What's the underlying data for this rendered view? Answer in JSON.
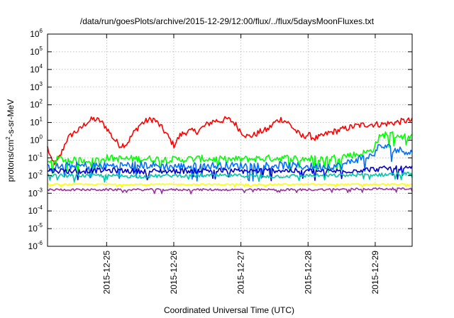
{
  "chart_data": {
    "type": "line",
    "title": "/data/run/goesPlots/archive/2015-12-29/12:00/flux/../flux/5daysMoonFluxes.txt",
    "xlabel": "Coordinated Universal Time (UTC)",
    "ylabel": {
      "parts": [
        "protons/cm",
        "2",
        "-s-sr-MeV"
      ]
    },
    "x_unit": "days since 2015-12-24 00:00 UTC",
    "xlim": [
      0.12,
      5.55
    ],
    "ylim_exponent": [
      -6,
      6
    ],
    "y_scale": "log",
    "grid": true,
    "x_ticks": [
      {
        "x": 1,
        "label": "2015-12-25"
      },
      {
        "x": 2,
        "label": "2015-12-26"
      },
      {
        "x": 3,
        "label": "2015-12-27"
      },
      {
        "x": 4,
        "label": "2015-12-28"
      },
      {
        "x": 5,
        "label": "2015-12-29"
      }
    ],
    "y_ticks": [
      {
        "exp": -6,
        "base": "10",
        "sup": "-6"
      },
      {
        "exp": -5,
        "base": "10",
        "sup": "-5"
      },
      {
        "exp": -4,
        "base": "10",
        "sup": "-4"
      },
      {
        "exp": -3,
        "base": "10",
        "sup": "-3"
      },
      {
        "exp": -2,
        "base": "10",
        "sup": "-2"
      },
      {
        "exp": -1,
        "base": "10",
        "sup": "-1"
      },
      {
        "exp": 0,
        "base": "10",
        "sup": "0"
      },
      {
        "exp": 1,
        "base": "10",
        "sup": "1"
      },
      {
        "exp": 2,
        "base": "10",
        "sup": "2"
      },
      {
        "exp": 3,
        "base": "10",
        "sup": "3"
      },
      {
        "exp": 4,
        "base": "10",
        "sup": "4"
      },
      {
        "exp": 5,
        "base": "10",
        "sup": "5"
      },
      {
        "exp": 6,
        "base": "10",
        "sup": "6"
      }
    ],
    "series": [
      {
        "color": "#ff0000",
        "noise": 0.18,
        "points": [
          [
            0.12,
            -0.4
          ],
          [
            0.18,
            -1.2
          ],
          [
            0.25,
            -1.3
          ],
          [
            0.32,
            -0.8
          ],
          [
            0.4,
            0
          ],
          [
            0.5,
            0.4
          ],
          [
            0.6,
            0.6
          ],
          [
            0.7,
            1.0
          ],
          [
            0.8,
            1.2
          ],
          [
            0.9,
            1.1
          ],
          [
            1.0,
            0.7
          ],
          [
            1.1,
            0.1
          ],
          [
            1.2,
            -0.3
          ],
          [
            1.3,
            -0.2
          ],
          [
            1.4,
            0.4
          ],
          [
            1.5,
            0.9
          ],
          [
            1.6,
            1.1
          ],
          [
            1.7,
            1.2
          ],
          [
            1.8,
            0.8
          ],
          [
            1.9,
            0.3
          ],
          [
            2.0,
            -0.3
          ],
          [
            2.1,
            0.3
          ],
          [
            2.2,
            0.5
          ],
          [
            2.35,
            0.5
          ],
          [
            2.5,
            0.9
          ],
          [
            2.6,
            1.1
          ],
          [
            2.7,
            1.1
          ],
          [
            2.8,
            1.2
          ],
          [
            2.9,
            1.0
          ],
          [
            3.0,
            0.5
          ],
          [
            3.1,
            0.2
          ],
          [
            3.2,
            0.3
          ],
          [
            3.3,
            0.5
          ],
          [
            3.4,
            0.6
          ],
          [
            3.5,
            1.0
          ],
          [
            3.6,
            1.2
          ],
          [
            3.7,
            1.0
          ],
          [
            3.8,
            0.6
          ],
          [
            3.9,
            0.2
          ],
          [
            4.0,
            0.3
          ],
          [
            4.1,
            0.1
          ],
          [
            4.2,
            0.2
          ],
          [
            4.3,
            0.4
          ],
          [
            4.5,
            0.6
          ],
          [
            4.7,
            0.8
          ],
          [
            4.9,
            0.9
          ],
          [
            5.1,
            0.9
          ],
          [
            5.3,
            1.0
          ],
          [
            5.45,
            1.1
          ],
          [
            5.55,
            1.1
          ]
        ]
      },
      {
        "color": "#00ff00",
        "noise": 0.2,
        "points": [
          [
            0.12,
            -1.3
          ],
          [
            0.3,
            -1.05
          ],
          [
            0.5,
            -1.15
          ],
          [
            0.8,
            -1.1
          ],
          [
            1.0,
            -1.0
          ],
          [
            1.2,
            -1.05
          ],
          [
            1.6,
            -1.05
          ],
          [
            2.0,
            -1.1
          ],
          [
            2.4,
            -1.05
          ],
          [
            2.8,
            -1.1
          ],
          [
            3.2,
            -1.05
          ],
          [
            3.6,
            -1.0
          ],
          [
            4.0,
            -1.05
          ],
          [
            4.3,
            -1.05
          ],
          [
            4.6,
            -0.85
          ],
          [
            4.75,
            -0.8
          ],
          [
            4.95,
            -0.6
          ],
          [
            5.05,
            0.1
          ],
          [
            5.15,
            0.35
          ],
          [
            5.3,
            0.3
          ],
          [
            5.45,
            0.2
          ],
          [
            5.55,
            0.15
          ]
        ]
      },
      {
        "color": "#0070ff",
        "noise": 0.22,
        "points": [
          [
            0.12,
            -1.55
          ],
          [
            0.5,
            -1.45
          ],
          [
            1.0,
            -1.45
          ],
          [
            1.5,
            -1.4
          ],
          [
            2.0,
            -1.5
          ],
          [
            2.5,
            -1.45
          ],
          [
            3.0,
            -1.45
          ],
          [
            3.5,
            -1.4
          ],
          [
            4.0,
            -1.5
          ],
          [
            4.5,
            -1.45
          ],
          [
            4.7,
            -1.1
          ],
          [
            4.95,
            -0.9
          ],
          [
            5.05,
            -0.4
          ],
          [
            5.15,
            -0.35
          ],
          [
            5.3,
            -0.55
          ],
          [
            5.45,
            -0.6
          ],
          [
            5.55,
            -0.7
          ]
        ]
      },
      {
        "color": "#0000cc",
        "noise": 0.15,
        "points": [
          [
            0.12,
            -1.7
          ],
          [
            0.5,
            -1.75
          ],
          [
            1.0,
            -1.7
          ],
          [
            1.5,
            -1.75
          ],
          [
            2.0,
            -1.75
          ],
          [
            2.5,
            -1.7
          ],
          [
            3.0,
            -1.75
          ],
          [
            3.5,
            -1.7
          ],
          [
            4.0,
            -1.75
          ],
          [
            4.5,
            -1.75
          ],
          [
            4.7,
            -1.7
          ],
          [
            4.95,
            -1.65
          ],
          [
            5.2,
            -1.6
          ],
          [
            5.4,
            -1.6
          ],
          [
            5.55,
            -1.6
          ]
        ]
      },
      {
        "color": "#00c8a8",
        "noise": 0.1,
        "points": [
          [
            0.12,
            -2.0
          ],
          [
            0.5,
            -2.0
          ],
          [
            1.0,
            -2.0
          ],
          [
            1.5,
            -2.05
          ],
          [
            2.0,
            -2.0
          ],
          [
            2.5,
            -2.0
          ],
          [
            3.0,
            -2.0
          ],
          [
            3.5,
            -2.05
          ],
          [
            4.0,
            -2.0
          ],
          [
            4.5,
            -2.0
          ],
          [
            4.8,
            -1.95
          ],
          [
            5.1,
            -1.95
          ],
          [
            5.3,
            -1.9
          ],
          [
            5.55,
            -1.9
          ]
        ]
      },
      {
        "color": "#ffff00",
        "noise": 0.04,
        "points": [
          [
            0.12,
            -2.5
          ],
          [
            1.0,
            -2.5
          ],
          [
            2.0,
            -2.5
          ],
          [
            3.0,
            -2.5
          ],
          [
            4.0,
            -2.5
          ],
          [
            5.0,
            -2.5
          ],
          [
            5.55,
            -2.5
          ]
        ]
      },
      {
        "color": "#993399",
        "noise": 0.06,
        "points": [
          [
            0.12,
            -2.8
          ],
          [
            1.0,
            -2.8
          ],
          [
            2.0,
            -2.8
          ],
          [
            3.0,
            -2.8
          ],
          [
            4.0,
            -2.8
          ],
          [
            5.0,
            -2.75
          ],
          [
            5.55,
            -2.75
          ]
        ]
      }
    ]
  }
}
